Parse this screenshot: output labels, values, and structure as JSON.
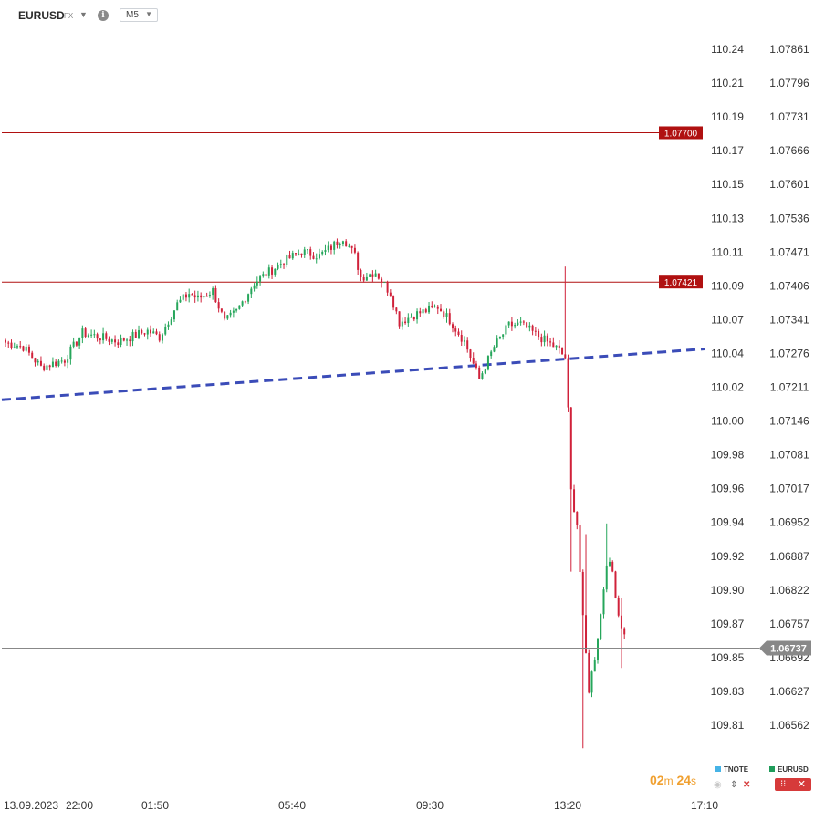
{
  "toolbar": {
    "symbol": "EURUSD",
    "exchange": "FX",
    "info_icon": "info-icon",
    "timeframe": "M5"
  },
  "chart_data": {
    "type": "candlestick",
    "title": "",
    "x_tick_labels": [
      "13.09.2023",
      "22:00",
      "01:50",
      "05:40",
      "09:30",
      "13:20",
      "17:10"
    ],
    "left_axis_ticks": [
      "110.24",
      "110.21",
      "110.19",
      "110.17",
      "110.15",
      "110.13",
      "110.11",
      "110.09",
      "110.07",
      "110.04",
      "110.02",
      "110.00",
      "109.98",
      "109.96",
      "109.94",
      "109.92",
      "109.90",
      "109.87",
      "109.85",
      "109.83",
      "109.81"
    ],
    "right_axis_ticks": [
      "1.07861",
      "1.07796",
      "1.07731",
      "1.07666",
      "1.07601",
      "1.07536",
      "1.07471",
      "1.07406",
      "1.07341",
      "1.07276",
      "1.07211",
      "1.07146",
      "1.07081",
      "1.07017",
      "1.06952",
      "1.06887",
      "1.06822",
      "1.06757",
      "1.06692",
      "1.06627",
      "1.06562"
    ],
    "ylim": [
      1.0653,
      1.0789
    ],
    "horizontal_lines": [
      {
        "label": "1.07700",
        "value": 1.077,
        "color": "#b01010"
      },
      {
        "label": "1.07421",
        "value": 1.07421,
        "color": "#b01010"
      }
    ],
    "current_price": {
      "label": "1.06737",
      "value": 1.06737,
      "color": "#888888"
    },
    "trendline": {
      "color": "#3b4cb8",
      "style": "dashed",
      "start": [
        0,
        1.07201
      ],
      "end": [
        1,
        1.07296
      ]
    },
    "waypoints": [
      [
        0,
        1.07308
      ],
      [
        6,
        1.073
      ],
      [
        12,
        1.07262
      ],
      [
        20,
        1.07276
      ],
      [
        26,
        1.07326
      ],
      [
        38,
        1.0731
      ],
      [
        48,
        1.0733
      ],
      [
        52,
        1.07318
      ],
      [
        58,
        1.0738
      ],
      [
        62,
        1.074
      ],
      [
        65,
        1.0739
      ],
      [
        70,
        1.07405
      ],
      [
        74,
        1.07346
      ],
      [
        78,
        1.07366
      ],
      [
        84,
        1.0742
      ],
      [
        94,
        1.0746
      ],
      [
        100,
        1.07478
      ],
      [
        106,
        1.0747
      ],
      [
        110,
        1.07486
      ],
      [
        114,
        1.07505
      ],
      [
        118,
        1.0747
      ],
      [
        120,
        1.0743
      ],
      [
        125,
        1.0744
      ],
      [
        130,
        1.074
      ],
      [
        133,
        1.07346
      ],
      [
        138,
        1.0736
      ],
      [
        146,
        1.07375
      ],
      [
        150,
        1.0735
      ],
      [
        155,
        1.0731
      ],
      [
        160,
        1.0724
      ],
      [
        165,
        1.073
      ],
      [
        170,
        1.0734
      ],
      [
        174,
        1.07342
      ],
      [
        180,
        1.0732
      ],
      [
        186,
        1.07298
      ],
      [
        189,
        1.0728
      ],
      [
        190,
        1.0718
      ],
      [
        191,
        1.0703
      ],
      [
        193,
        1.0697
      ],
      [
        195,
        1.0679
      ],
      [
        197,
        1.0666
      ],
      [
        199,
        1.0672
      ],
      [
        201,
        1.068
      ],
      [
        203,
        1.069
      ],
      [
        205,
        1.0688
      ],
      [
        207,
        1.068
      ],
      [
        209,
        1.0676
      ]
    ],
    "special_bars": {
      "189": {
        "high": 1.0745
      },
      "191": {
        "low": 1.0688
      },
      "195": {
        "low": 1.0655
      },
      "196": {
        "high": 1.0695
      },
      "203": {
        "high": 1.0697
      },
      "208": {
        "high": 1.0683,
        "low": 1.067
      }
    },
    "up_color": "#26a65b",
    "down_color": "#d0213a"
  },
  "legend": {
    "items": [
      {
        "name": "TNOTE",
        "color": "#46b3e6"
      },
      {
        "name": "EURUSD",
        "color": "#1f9c5a"
      }
    ]
  },
  "timer": {
    "minutes": "02",
    "m_unit": "m",
    "seconds": "24",
    "s_unit": "s"
  }
}
